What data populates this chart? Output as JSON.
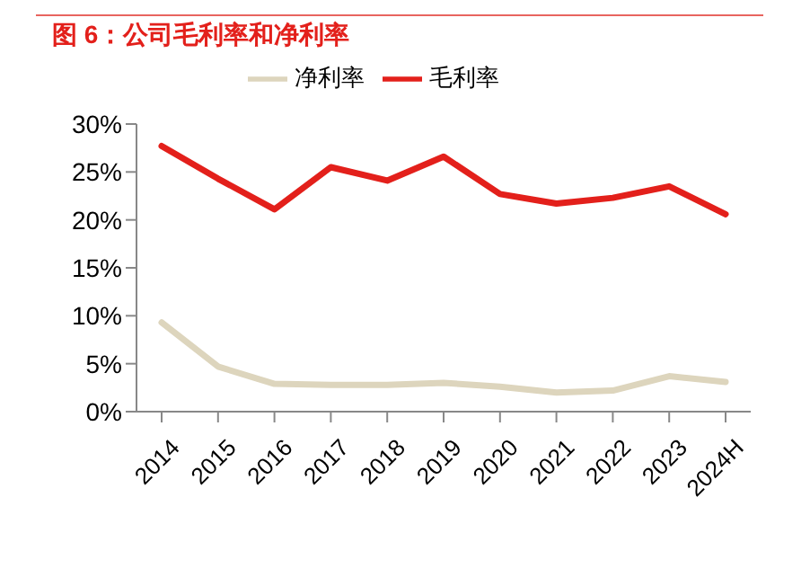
{
  "chart_data": {
    "type": "line",
    "title": "图 6：公司毛利率和净利率",
    "categories": [
      "2014",
      "2015",
      "2016",
      "2017",
      "2018",
      "2019",
      "2020",
      "2021",
      "2022",
      "2023",
      "2024H"
    ],
    "series": [
      {
        "name": "毛利率",
        "color": "#e3201b",
        "values": [
          27.7,
          24.3,
          21.1,
          25.5,
          24.1,
          26.6,
          22.7,
          21.7,
          22.3,
          23.5,
          20.6
        ]
      },
      {
        "name": "净利率",
        "color": "#ddd5bd",
        "values": [
          9.3,
          4.7,
          2.9,
          2.8,
          2.8,
          3.0,
          2.6,
          2.0,
          2.2,
          3.7,
          3.1
        ]
      }
    ],
    "ylim": [
      0,
      30
    ],
    "yticks": [
      {
        "value": 0,
        "label": "0%"
      },
      {
        "value": 5,
        "label": "5%"
      },
      {
        "value": 10,
        "label": "10%"
      },
      {
        "value": 15,
        "label": "15%"
      },
      {
        "value": 20,
        "label": "20%"
      },
      {
        "value": 25,
        "label": "25%"
      },
      {
        "value": 30,
        "label": "30%"
      }
    ],
    "grid": false,
    "legend": "top",
    "marker": "none",
    "line_style": "solid"
  }
}
